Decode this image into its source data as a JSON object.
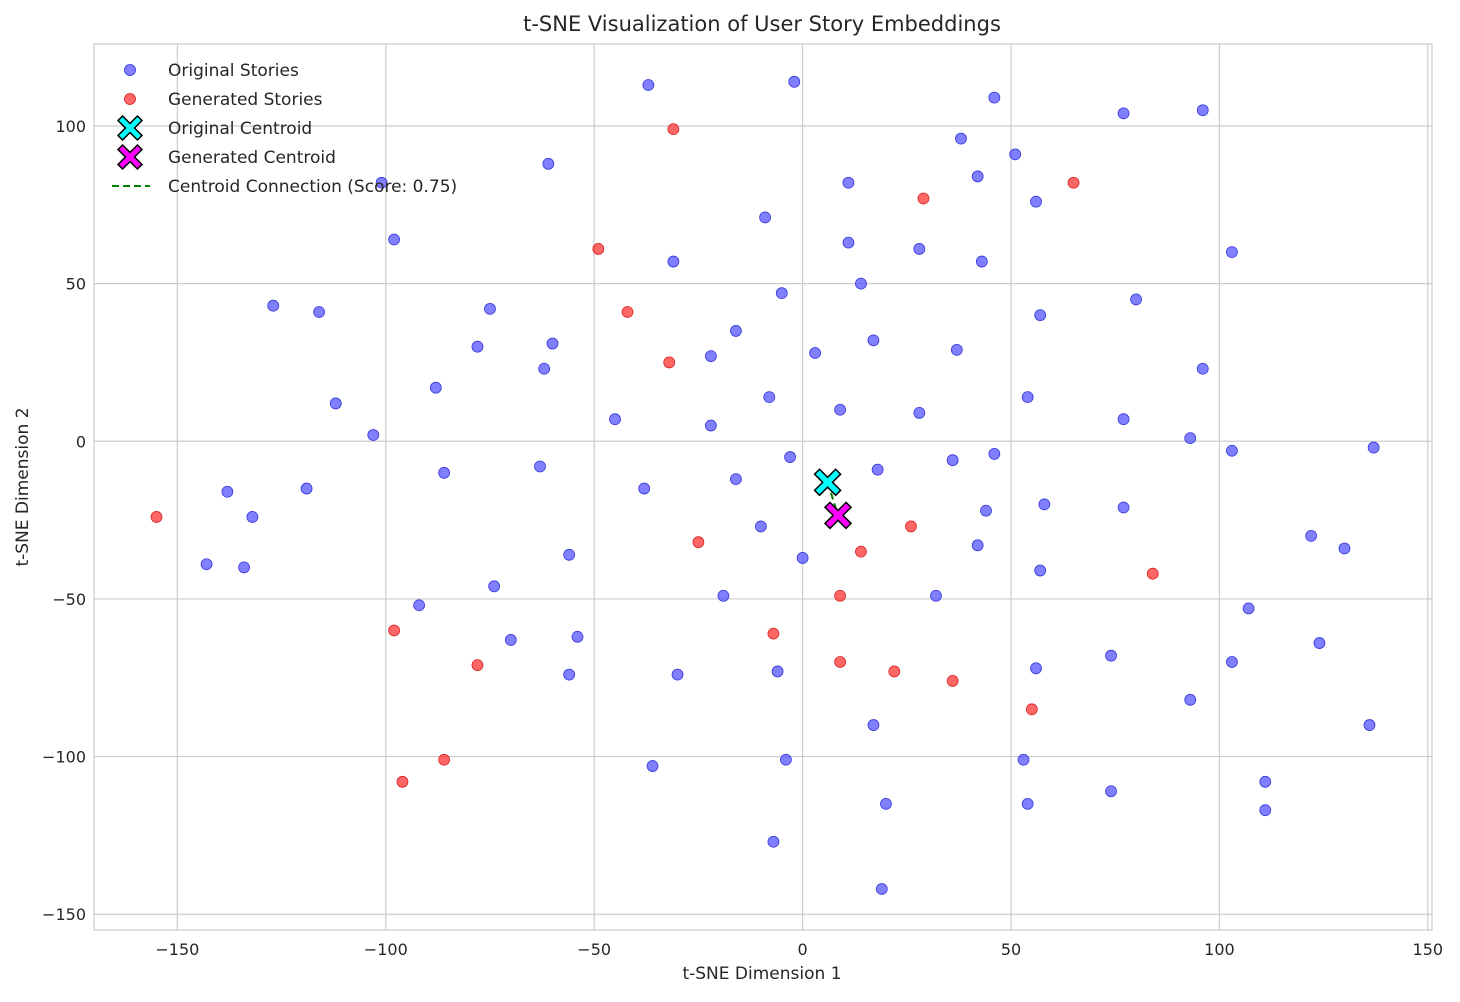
{
  "chart_data": {
    "type": "scatter",
    "title": "t-SNE Visualization of User Story Embeddings",
    "xlabel": "t-SNE Dimension 1",
    "ylabel": "t-SNE Dimension 2",
    "xlim": [
      -170,
      151
    ],
    "ylim": [
      -155,
      126
    ],
    "xticks": [
      -150,
      -100,
      -50,
      0,
      50,
      100,
      150
    ],
    "yticks": [
      -150,
      -100,
      -50,
      0,
      50,
      100
    ],
    "grid": true,
    "legend_position": "top-left",
    "colors": {
      "original": "#5555ff",
      "generated": "#ff3333",
      "original_centroid": "#00ffff",
      "generated_centroid": "#ff00ff",
      "connection": "#008000"
    },
    "series": [
      {
        "name": "Original Stories",
        "points": [
          [
            -37,
            113
          ],
          [
            -2,
            114
          ],
          [
            46,
            109
          ],
          [
            77,
            104
          ],
          [
            96,
            105
          ],
          [
            -101,
            82
          ],
          [
            -98,
            64
          ],
          [
            -61,
            88
          ],
          [
            11,
            82
          ],
          [
            38,
            96
          ],
          [
            51,
            91
          ],
          [
            42,
            84
          ],
          [
            56,
            76
          ],
          [
            -9,
            71
          ],
          [
            11,
            63
          ],
          [
            28,
            61
          ],
          [
            43,
            57
          ],
          [
            -31,
            57
          ],
          [
            103,
            60
          ],
          [
            -127,
            43
          ],
          [
            -116,
            41
          ],
          [
            -75,
            42
          ],
          [
            -5,
            47
          ],
          [
            14,
            50
          ],
          [
            57,
            40
          ],
          [
            80,
            45
          ],
          [
            -78,
            30
          ],
          [
            -60,
            31
          ],
          [
            -16,
            35
          ],
          [
            17,
            32
          ],
          [
            37,
            29
          ],
          [
            3,
            28
          ],
          [
            -22,
            27
          ],
          [
            -62,
            23
          ],
          [
            -88,
            17
          ],
          [
            -112,
            12
          ],
          [
            -8,
            14
          ],
          [
            9,
            10
          ],
          [
            28,
            9
          ],
          [
            54,
            14
          ],
          [
            77,
            7
          ],
          [
            96,
            23
          ],
          [
            -103,
            2
          ],
          [
            -45,
            7
          ],
          [
            -22,
            5
          ],
          [
            93,
            1
          ],
          [
            103,
            -3
          ],
          [
            137,
            -2
          ],
          [
            -63,
            -8
          ],
          [
            -86,
            -10
          ],
          [
            -3,
            -5
          ],
          [
            18,
            -9
          ],
          [
            36,
            -6
          ],
          [
            46,
            -4
          ],
          [
            -38,
            -15
          ],
          [
            -16,
            -12
          ],
          [
            -119,
            -15
          ],
          [
            -138,
            -16
          ],
          [
            -132,
            -24
          ],
          [
            -10,
            -27
          ],
          [
            44,
            -22
          ],
          [
            58,
            -20
          ],
          [
            77,
            -21
          ],
          [
            122,
            -30
          ],
          [
            130,
            -34
          ],
          [
            -56,
            -36
          ],
          [
            0,
            -37
          ],
          [
            42,
            -33
          ],
          [
            57,
            -41
          ],
          [
            -143,
            -39
          ],
          [
            -134,
            -40
          ],
          [
            -74,
            -46
          ],
          [
            -19,
            -49
          ],
          [
            32,
            -49
          ],
          [
            107,
            -53
          ],
          [
            -92,
            -52
          ],
          [
            -70,
            -63
          ],
          [
            -54,
            -62
          ],
          [
            124,
            -64
          ],
          [
            -56,
            -74
          ],
          [
            -30,
            -74
          ],
          [
            -6,
            -73
          ],
          [
            56,
            -72
          ],
          [
            74,
            -68
          ],
          [
            103,
            -70
          ],
          [
            17,
            -90
          ],
          [
            93,
            -82
          ],
          [
            136,
            -90
          ],
          [
            -36,
            -103
          ],
          [
            -4,
            -101
          ],
          [
            53,
            -101
          ],
          [
            111,
            -108
          ],
          [
            20,
            -115
          ],
          [
            54,
            -115
          ],
          [
            74,
            -111
          ],
          [
            111,
            -117
          ],
          [
            -7,
            -127
          ],
          [
            19,
            -142
          ]
        ]
      },
      {
        "name": "Generated Stories",
        "points": [
          [
            -31,
            99
          ],
          [
            -49,
            61
          ],
          [
            65,
            82
          ],
          [
            29,
            77
          ],
          [
            -42,
            41
          ],
          [
            -32,
            25
          ],
          [
            -155,
            -24
          ],
          [
            -25,
            -32
          ],
          [
            26,
            -27
          ],
          [
            14,
            -35
          ],
          [
            84,
            -42
          ],
          [
            9,
            -49
          ],
          [
            -98,
            -60
          ],
          [
            -7,
            -61
          ],
          [
            -78,
            -71
          ],
          [
            9,
            -70
          ],
          [
            22,
            -73
          ],
          [
            36,
            -76
          ],
          [
            55,
            -85
          ],
          [
            -86,
            -101
          ],
          [
            -96,
            -108
          ]
        ]
      }
    ],
    "centroids": [
      {
        "name": "Original Centroid",
        "x": 6,
        "y": -13
      },
      {
        "name": "Generated Centroid",
        "x": 8.5,
        "y": -23.5
      }
    ],
    "connection": {
      "name": "Centroid Connection (Score: 0.75)",
      "style": "dashed"
    }
  }
}
